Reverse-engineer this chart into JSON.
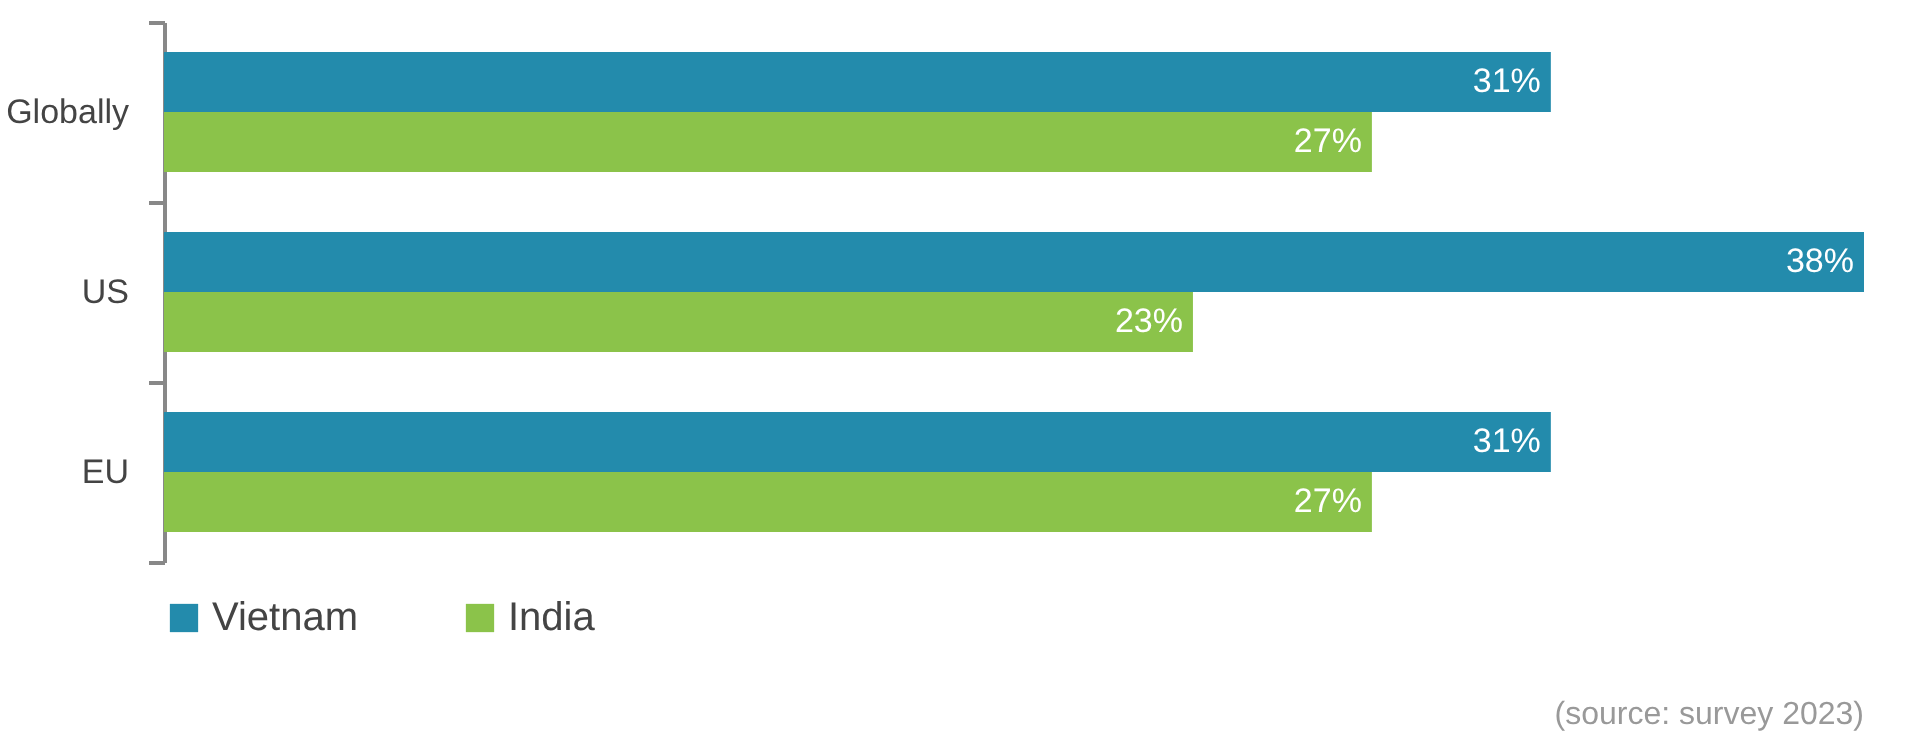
{
  "chart_data": {
    "type": "bar",
    "orientation": "horizontal",
    "categories": [
      "Globally",
      "US",
      "EU"
    ],
    "series": [
      {
        "name": "Vietnam",
        "color": "#238bac",
        "values": [
          31,
          38,
          31
        ],
        "value_labels": [
          "31%",
          "38%",
          "31%"
        ]
      },
      {
        "name": "India",
        "color": "#8bc34a",
        "values": [
          27,
          23,
          27
        ],
        "value_labels": [
          "27%",
          "23%",
          "27%"
        ]
      }
    ],
    "legend": "bottom",
    "grid": false,
    "annotations": [
      "(source: survey 2023)"
    ]
  }
}
